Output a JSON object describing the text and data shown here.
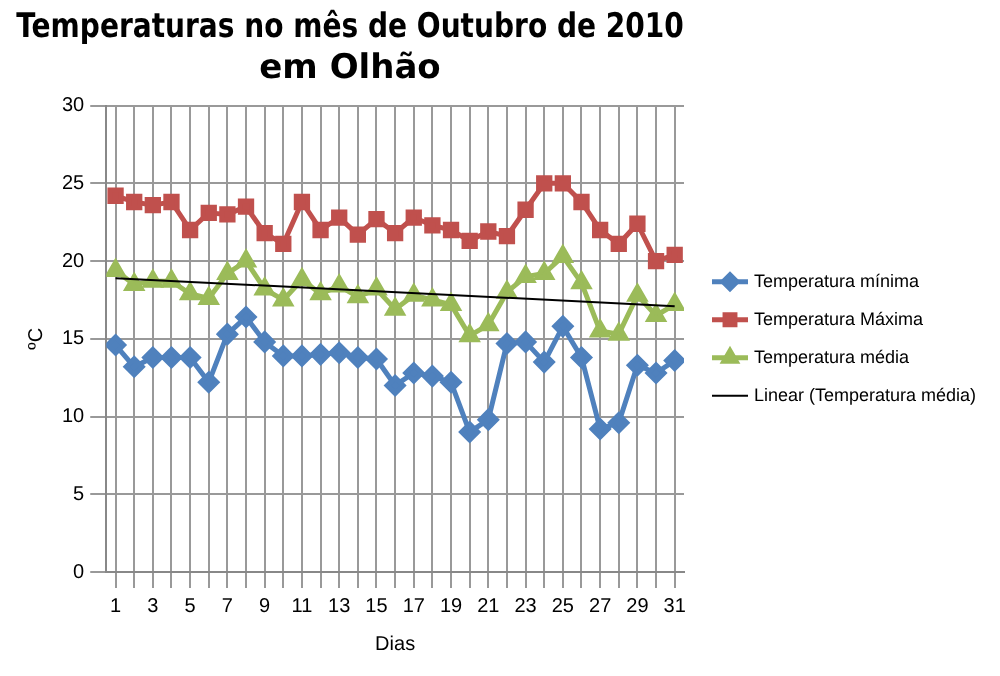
{
  "chart_data": {
    "type": "line",
    "title": "Temperaturas no mês de Outubro de 2010\nem Olhão",
    "xlabel": "Dias",
    "ylabel": "ºC",
    "x": [
      1,
      2,
      3,
      4,
      5,
      6,
      7,
      8,
      9,
      10,
      11,
      12,
      13,
      14,
      15,
      16,
      17,
      18,
      19,
      20,
      21,
      22,
      23,
      24,
      25,
      26,
      27,
      28,
      29,
      30,
      31
    ],
    "xlim": [
      0.5,
      31.5
    ],
    "xticks": [
      1,
      {
        "value": 2,
        "label": null
      },
      3,
      {
        "value": 4,
        "label": null
      },
      5,
      {
        "value": 6,
        "label": null
      },
      7,
      {
        "value": 8,
        "label": null
      },
      9,
      {
        "value": 10,
        "label": null
      },
      11,
      {
        "value": 12,
        "label": null
      },
      13,
      {
        "value": 14,
        "label": null
      },
      15,
      {
        "value": 16,
        "label": null
      },
      17,
      {
        "value": 18,
        "label": null
      },
      19,
      {
        "value": 20,
        "label": null
      },
      21,
      {
        "value": 22,
        "label": null
      },
      23,
      {
        "value": 24,
        "label": null
      },
      25,
      {
        "value": 26,
        "label": null
      },
      27,
      {
        "value": 28,
        "label": null
      },
      29,
      {
        "value": 30,
        "label": null
      },
      31
    ],
    "ylim": [
      0,
      30
    ],
    "yticks": [
      0,
      5,
      10,
      15,
      20,
      25,
      30
    ],
    "grid": true,
    "legend": "right",
    "line_style": "solid",
    "series": [
      {
        "name": "Temperatura mínima",
        "color": "#4f81bd",
        "marker": "diamond",
        "values": [
          14.6,
          13.2,
          13.8,
          13.8,
          13.8,
          12.2,
          15.3,
          16.4,
          14.8,
          13.9,
          13.9,
          14.0,
          14.1,
          13.8,
          13.7,
          12.0,
          12.8,
          12.6,
          12.2,
          9.0,
          9.8,
          14.7,
          14.8,
          13.5,
          15.8,
          13.8,
          9.2,
          9.6,
          13.3,
          12.8,
          13.6
        ]
      },
      {
        "name": "Temperatura Máxima",
        "color": "#c0504d",
        "marker": "square",
        "values": [
          24.2,
          23.8,
          23.6,
          23.8,
          22.0,
          23.1,
          23.0,
          23.5,
          21.8,
          21.1,
          23.8,
          22.0,
          22.8,
          21.7,
          22.7,
          21.8,
          22.8,
          22.3,
          22.0,
          21.3,
          21.9,
          21.6,
          23.3,
          25.0,
          25.0,
          23.8,
          22.0,
          21.1,
          22.4,
          20.0,
          20.4
        ]
      },
      {
        "name": "Temperatura média",
        "color": "#9bbb59",
        "marker": "triangle",
        "values": [
          19.4,
          18.5,
          18.7,
          18.7,
          17.9,
          17.6,
          19.2,
          20.0,
          18.2,
          17.5,
          18.8,
          17.9,
          18.4,
          17.7,
          18.2,
          16.9,
          17.8,
          17.5,
          17.2,
          15.2,
          15.9,
          18.0,
          19.0,
          19.2,
          20.3,
          18.6,
          15.5,
          15.3,
          17.8,
          16.5,
          17.2
        ]
      },
      {
        "name": "Linear (Temperatura média)",
        "color": "#000000",
        "marker": "none",
        "x": [
          1,
          31
        ],
        "values": [
          18.9,
          17.1
        ]
      }
    ]
  }
}
